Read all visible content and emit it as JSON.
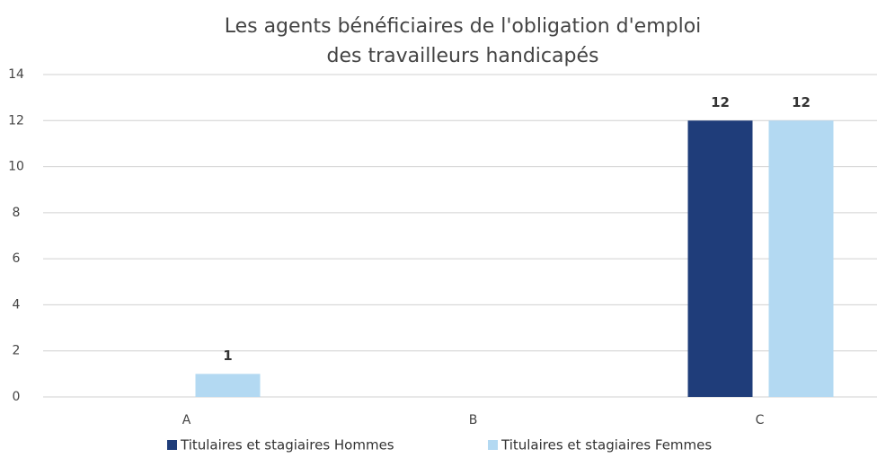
{
  "chart_data": {
    "type": "bar",
    "title": [
      "Les agents bénéficiaires de l'obligation d'emploi",
      "des travailleurs handicapés"
    ],
    "categories": [
      "A",
      "B",
      "C"
    ],
    "series": [
      {
        "name": "Titulaires et stagiaires Hommes",
        "color": "#1f3d7a",
        "values": [
          null,
          null,
          12
        ]
      },
      {
        "name": "Titulaires et stagiaires Femmes",
        "color": "#b3d9f2",
        "values": [
          1,
          null,
          12
        ]
      }
    ],
    "ylim": [
      0,
      14
    ],
    "yticks": [
      0,
      2,
      4,
      6,
      8,
      10,
      12,
      14
    ],
    "grid": true,
    "legend": "bottom"
  }
}
